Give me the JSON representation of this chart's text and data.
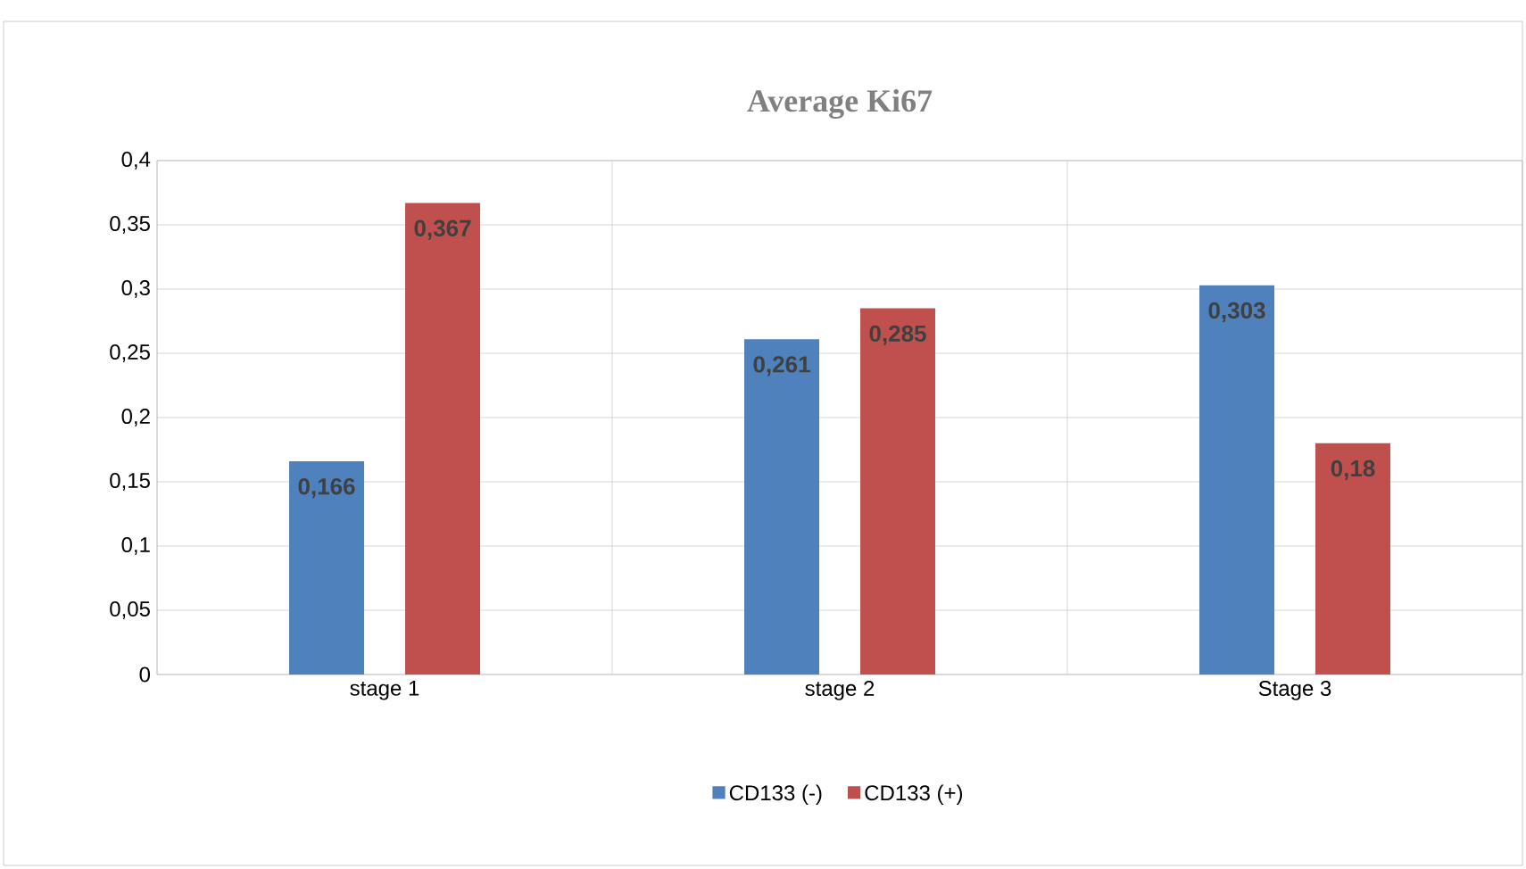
{
  "chart_data": {
    "type": "bar",
    "title": "Average Ki67",
    "categories": [
      "stage 1",
      "stage 2",
      "Stage 3"
    ],
    "series": [
      {
        "name": "CD133 (-)",
        "color": "#4f81bd",
        "values": [
          0.166,
          0.261,
          0.303
        ],
        "value_labels": [
          "0,166",
          "0,261",
          "0,303"
        ]
      },
      {
        "name": "CD133 (+)",
        "color": "#c0504d",
        "values": [
          0.367,
          0.285,
          0.18
        ],
        "value_labels": [
          "0,367",
          "0,285",
          "0,18"
        ]
      }
    ],
    "ylim": [
      0,
      0.4
    ],
    "yticks": [
      0,
      {
        "value": 0.05,
        "label": "0,05"
      },
      {
        "value": 0.1,
        "label": "0,1"
      },
      {
        "value": 0.15,
        "label": "0,15"
      },
      {
        "value": 0.2,
        "label": "0,2"
      },
      {
        "value": 0.25,
        "label": "0,25"
      },
      {
        "value": 0.3,
        "label": "0,3"
      },
      {
        "value": 0.35,
        "label": "0,35"
      },
      {
        "value": 0.4,
        "label": "0,4"
      }
    ],
    "grid": true,
    "legend": "bottom"
  }
}
